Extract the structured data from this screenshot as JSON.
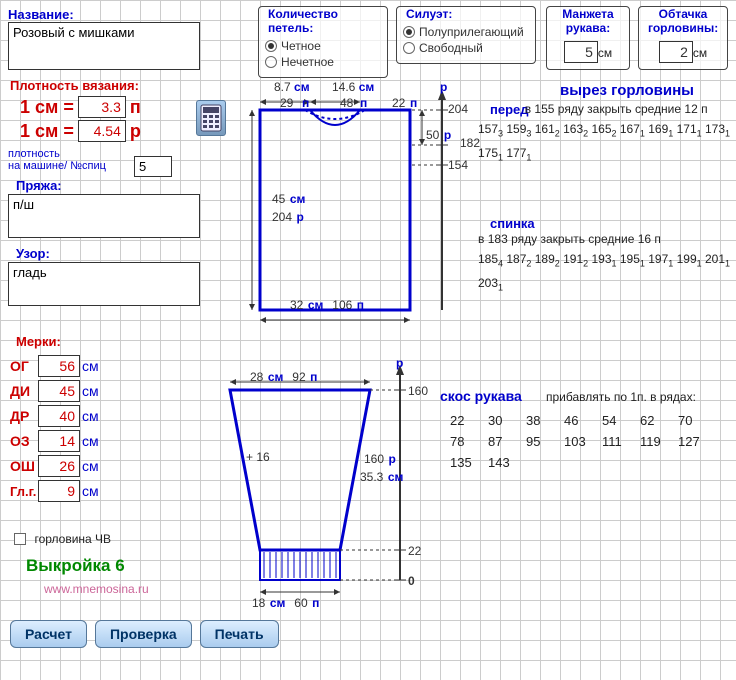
{
  "name_label": "Название:",
  "name_value": "Розовый с мишками",
  "density_label": "Плотность вязания:",
  "density_p_eq": "1 см =",
  "density_p_val": "3.3",
  "density_p_unit": "п",
  "density_r_eq": "1 см =",
  "density_r_val": "4.54",
  "density_r_unit": "р",
  "machine_label": "плотность\nна машине/ №спиц",
  "machine_val": "5",
  "yarn_label": "Пряжа:",
  "yarn_val": "п/ш",
  "pattern_label": "Узор:",
  "pattern_val": "гладь",
  "stitches": {
    "legend": "Количество петель:",
    "even": "Четное",
    "odd": "Нечетное"
  },
  "silhouette": {
    "legend": "Силуэт:",
    "semi": "Полуприлегающий",
    "free": "Свободный"
  },
  "cuff": {
    "legend": "Манжета рукава:",
    "val": "5",
    "unit": "см"
  },
  "neckband": {
    "legend": "Обтачка горловины:",
    "val": "2",
    "unit": "см"
  },
  "measures_label": "Мерки:",
  "measures": {
    "og": {
      "l": "ОГ",
      "v": "56"
    },
    "di": {
      "l": "ДИ",
      "v": "45"
    },
    "dr": {
      "l": "ДР",
      "v": "40"
    },
    "oz": {
      "l": "ОЗ",
      "v": "14"
    },
    "osh": {
      "l": "ОШ",
      "v": "26"
    },
    "glg": {
      "l": "Гл.г.",
      "v": "9"
    }
  },
  "cm_unit": "см",
  "neck_cb": "горловина ЧВ",
  "title": "Выкройка 6",
  "site": "www.mnemosina.ru",
  "buttons": {
    "calc": "Расчет",
    "check": "Проверка",
    "print": "Печать"
  },
  "body_diagram": {
    "top": {
      "a": "8.7",
      "b": "14.6",
      "cm": "см"
    },
    "top2": {
      "a": "29",
      "b": "48",
      "c": "22",
      "p": "п"
    },
    "side": {
      "cm": "45",
      "rows": "204",
      "cml": "см",
      "rl": "р"
    },
    "bottom": {
      "cm": "32",
      "st": "106",
      "cml": "см",
      "pl": "п"
    },
    "right": {
      "r204": "204",
      "r50": "50",
      "r182": "182",
      "r154": "154",
      "p": "р"
    },
    "axis_p": "р"
  },
  "sleeve_diagram": {
    "top": {
      "cm": "28",
      "st": "92",
      "cml": "см",
      "pl": "п"
    },
    "right160": "160",
    "mid": {
      "plus": "+ 16",
      "rows": "160",
      "cm": "35.3",
      "rl": "р",
      "cml": "см"
    },
    "low22": "22",
    "zero": "0",
    "bottom": {
      "cm": "18",
      "st": "60",
      "cml": "см",
      "pl": "п"
    },
    "axis_p": "р"
  },
  "neck_section": {
    "title": "вырез горловины",
    "front": "перед",
    "front_instr_a": "в",
    "front_instr_row": "155",
    "front_instr_b": "ряду закрыть средние",
    "front_instr_n": "12",
    "front_instr_c": "п",
    "front_seq": [
      [
        "157",
        "3"
      ],
      [
        "159",
        "3"
      ],
      [
        "161",
        "2"
      ],
      [
        "163",
        "2"
      ],
      [
        "165",
        "2"
      ],
      [
        "167",
        "1"
      ],
      [
        "169",
        "1"
      ],
      [
        "171",
        "1"
      ],
      [
        "173",
        "1"
      ],
      [
        "175",
        "1"
      ],
      [
        "177",
        "1"
      ]
    ],
    "back": "спинка",
    "back_instr_a": "в",
    "back_instr_row": "183",
    "back_instr_b": "ряду закрыть средние",
    "back_instr_n": "16",
    "back_instr_c": "п",
    "back_seq": [
      [
        "185",
        "4"
      ],
      [
        "187",
        "2"
      ],
      [
        "189",
        "2"
      ],
      [
        "191",
        "2"
      ],
      [
        "193",
        "1"
      ],
      [
        "195",
        "1"
      ],
      [
        "197",
        "1"
      ],
      [
        "199",
        "1"
      ],
      [
        "201",
        "1"
      ],
      [
        "203",
        "1"
      ]
    ]
  },
  "sleeve_section": {
    "title": "скос рукава",
    "instr": "прибавлять по 1п. в рядах:",
    "rows": [
      "22",
      "30",
      "38",
      "46",
      "54",
      "62",
      "70",
      "78",
      "87",
      "95",
      "103",
      "111",
      "119",
      "127",
      "135",
      "143"
    ]
  }
}
